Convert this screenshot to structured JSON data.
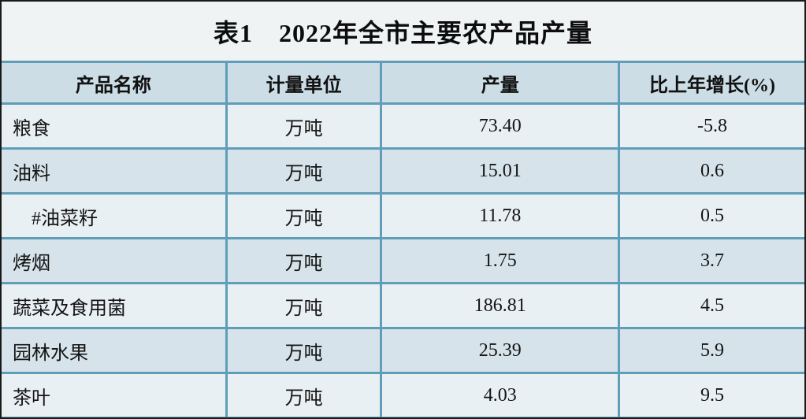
{
  "title": "表1　2022年全市主要农产品产量",
  "table": {
    "columns": [
      "产品名称",
      "计量单位",
      "产量",
      "比上年增长(%)"
    ],
    "rows": [
      {
        "name": "粮食",
        "unit": "万吨",
        "output": "73.40",
        "growth": "-5.8"
      },
      {
        "name": "油料",
        "unit": "万吨",
        "output": "15.01",
        "growth": "0.6"
      },
      {
        "name": "#油菜籽",
        "unit": "万吨",
        "output": "11.78",
        "growth": "0.5"
      },
      {
        "name": "烤烟",
        "unit": "万吨",
        "output": "1.75",
        "growth": "3.7"
      },
      {
        "name": "蔬菜及食用菌",
        "unit": "万吨",
        "output": "186.81",
        "growth": "4.5"
      },
      {
        "name": "园林水果",
        "unit": "万吨",
        "output": "25.39",
        "growth": "5.9"
      },
      {
        "name": "茶叶",
        "unit": "万吨",
        "output": "4.03",
        "growth": "9.5"
      }
    ]
  },
  "colors": {
    "frame_border": "#1a1a1a",
    "title_background": "#eff3f4",
    "header_background": "#ccdde6",
    "row_light": "#e9f0f4",
    "row_dark": "#d6e3ea",
    "grid_line": "#5f9db9",
    "text": "#141414"
  }
}
